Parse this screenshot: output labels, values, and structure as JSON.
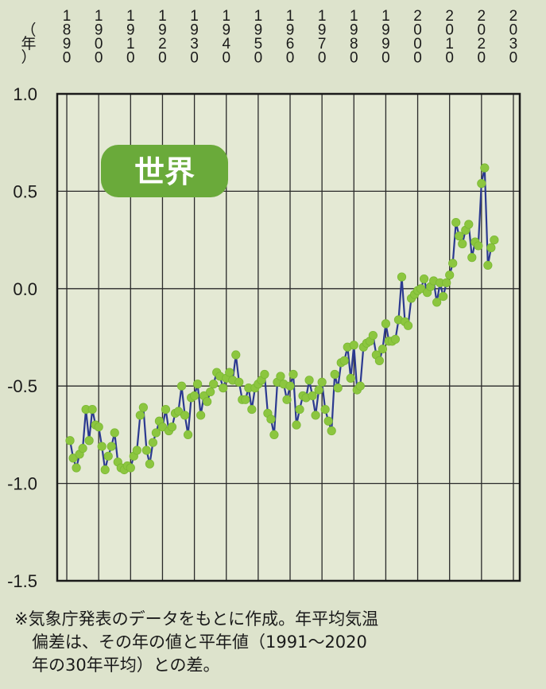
{
  "chart_data": {
    "type": "line",
    "title": "世界",
    "year_unit_label": "（年）",
    "x_ticks": [
      "1890",
      "1900",
      "1910",
      "1920",
      "1930",
      "1940",
      "1950",
      "1960",
      "1970",
      "1980",
      "1990",
      "2000",
      "2010",
      "2020",
      "2030"
    ],
    "y_ticks": [
      "1.0",
      "0.5",
      "0.0",
      "-0.5",
      "-1.0",
      "-1.5"
    ],
    "xlim": [
      1887,
      2032
    ],
    "ylim": [
      -1.5,
      1.0
    ],
    "grid": true,
    "line_color": "#2b3990",
    "marker_color": "#8cc63f",
    "title_badge_color": "#6aaa3a",
    "series": [
      {
        "x": [
          1891,
          1892,
          1893,
          1894,
          1895,
          1896,
          1897,
          1898,
          1899,
          1900,
          1901,
          1902,
          1903,
          1904,
          1905,
          1906,
          1907,
          1908,
          1909,
          1910,
          1911,
          1912,
          1913,
          1914,
          1915,
          1916,
          1917,
          1918,
          1919,
          1920,
          1921,
          1922,
          1923,
          1924,
          1925,
          1926,
          1927,
          1928,
          1929,
          1930,
          1931,
          1932,
          1933,
          1934,
          1935,
          1936,
          1937,
          1938,
          1939,
          1940,
          1941,
          1942,
          1943,
          1944,
          1945,
          1946,
          1947,
          1948,
          1949,
          1950,
          1951,
          1952,
          1953,
          1954,
          1955,
          1956,
          1957,
          1958,
          1959,
          1960,
          1961,
          1962,
          1963,
          1964,
          1965,
          1966,
          1967,
          1968,
          1969,
          1970,
          1971,
          1972,
          1973,
          1974,
          1975,
          1976,
          1977,
          1978,
          1979,
          1980,
          1981,
          1982,
          1983,
          1984,
          1985,
          1986,
          1987,
          1988,
          1989,
          1990,
          1991,
          1992,
          1993,
          1994,
          1995,
          1996,
          1997,
          1998,
          1999,
          2000,
          2001,
          2002,
          2003,
          2004,
          2005,
          2006,
          2007,
          2008,
          2009,
          2010,
          2011,
          2012,
          2013,
          2014,
          2015,
          2016,
          2017,
          2018,
          2019,
          2020,
          2021,
          2022,
          2023,
          2024
        ],
        "values": [
          -0.78,
          -0.87,
          -0.92,
          -0.85,
          -0.82,
          -0.62,
          -0.78,
          -0.62,
          -0.7,
          -0.71,
          -0.81,
          -0.93,
          -0.86,
          -0.81,
          -0.74,
          -0.89,
          -0.92,
          -0.93,
          -0.91,
          -0.92,
          -0.86,
          -0.83,
          -0.65,
          -0.61,
          -0.83,
          -0.9,
          -0.79,
          -0.74,
          -0.68,
          -0.71,
          -0.62,
          -0.73,
          -0.71,
          -0.64,
          -0.63,
          -0.5,
          -0.65,
          -0.75,
          -0.56,
          -0.55,
          -0.49,
          -0.65,
          -0.55,
          -0.58,
          -0.53,
          -0.49,
          -0.43,
          -0.45,
          -0.51,
          -0.46,
          -0.43,
          -0.47,
          -0.34,
          -0.48,
          -0.57,
          -0.57,
          -0.51,
          -0.62,
          -0.51,
          -0.49,
          -0.47,
          -0.44,
          -0.64,
          -0.67,
          -0.75,
          -0.48,
          -0.45,
          -0.49,
          -0.57,
          -0.5,
          -0.44,
          -0.7,
          -0.62,
          -0.55,
          -0.56,
          -0.47,
          -0.55,
          -0.65,
          -0.52,
          -0.48,
          -0.62,
          -0.68,
          -0.73,
          -0.44,
          -0.51,
          -0.38,
          -0.37,
          -0.3,
          -0.46,
          -0.29,
          -0.52,
          -0.5,
          -0.3,
          -0.28,
          -0.27,
          -0.24,
          -0.34,
          -0.37,
          -0.31,
          -0.18,
          -0.27,
          -0.27,
          -0.26,
          -0.16,
          0.06,
          -0.17,
          -0.19,
          -0.05,
          -0.03,
          -0.01,
          0.0,
          0.05,
          -0.02,
          0.01,
          0.04,
          -0.07,
          0.03,
          -0.04,
          0.03,
          0.07,
          0.13,
          0.34,
          0.27,
          0.23,
          0.3,
          0.33,
          0.16,
          0.24,
          0.22,
          0.54,
          0.62,
          0.12,
          0.21,
          0.25
        ]
      }
    ],
    "note_lines": [
      "※気象庁発表のデータをもとに作成。年平均気温",
      "偏差は、その年の値と平年値（1991～2020",
      "年の30年平均）との差。"
    ]
  }
}
